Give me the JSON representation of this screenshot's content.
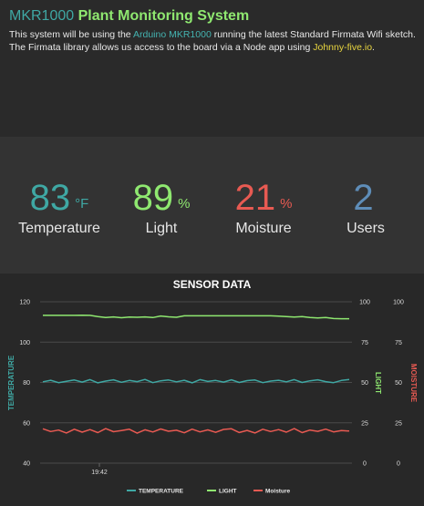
{
  "header": {
    "brand": "MKR1000",
    "title": "Plant Monitoring System",
    "intro_1": "This system will be using the ",
    "intro_link_1": "Arduino MKR1000",
    "intro_2": " running the latest Standard Firmata Wifi sketch. The Firmata library allows us access to the board via a Node app using ",
    "intro_link_2": "Johnny-five.io",
    "intro_3": "."
  },
  "stats": [
    {
      "value": "83",
      "unit": "°F",
      "label": "Temperature",
      "color": "#3fa8a4"
    },
    {
      "value": "89",
      "unit": "%",
      "label": "Light",
      "color": "#8fe870"
    },
    {
      "value": "21",
      "unit": "%",
      "label": "Moisture",
      "color": "#e85a52"
    },
    {
      "value": "2",
      "unit": "",
      "label": "Users",
      "color": "#5e8db8"
    }
  ],
  "chart_data": {
    "type": "line",
    "title": "SENSOR DATA",
    "x_tick_labels": [
      "19:42"
    ],
    "left_axis": {
      "label": "TEMPERATURE",
      "ylim": [
        40,
        120
      ],
      "ticks": [
        "40",
        "60",
        "80",
        "100",
        "120"
      ]
    },
    "right_axes": [
      {
        "label": "LIGHT",
        "ylim": [
          0,
          100
        ],
        "ticks": [
          "0",
          "25",
          "50",
          "75",
          "100"
        ]
      },
      {
        "label": "MOISTURE",
        "ylim": [
          0,
          100
        ],
        "ticks": [
          "0",
          "25",
          "50",
          "75",
          "100"
        ]
      }
    ],
    "legend": [
      "TEMPERATURE",
      "LIGHT",
      "Moisture"
    ],
    "legend_position": "bottom",
    "series": [
      {
        "name": "TEMPERATURE",
        "color": "#3fa8a4",
        "axis": "left",
        "values": [
          80.3,
          81.1,
          79.9,
          80.6,
          81.2,
          80.2,
          81.4,
          79.8,
          80.7,
          81.3,
          80.1,
          81.0,
          80.4,
          81.5,
          79.9,
          80.8,
          81.2,
          80.3,
          81.1,
          79.8,
          81.4,
          80.5,
          81.0,
          80.2,
          81.3,
          80.0,
          80.9,
          81.2,
          79.9,
          80.7,
          81.1,
          80.3,
          81.4,
          80.0,
          80.8,
          81.3,
          80.4,
          79.9,
          81.0,
          81.5
        ]
      },
      {
        "name": "LIGHT",
        "color": "#8fe870",
        "axis": "right",
        "values": [
          91.6,
          91.6,
          91.6,
          91.6,
          91.6,
          91.7,
          91.6,
          90.8,
          90.2,
          90.6,
          90.1,
          90.5,
          90.4,
          90.6,
          90.2,
          91.2,
          90.7,
          90.4,
          91.3,
          91.3,
          91.3,
          91.3,
          91.3,
          91.3,
          91.3,
          91.3,
          91.3,
          91.3,
          91.3,
          91.3,
          91.1,
          90.8,
          90.5,
          90.8,
          90.3,
          90.0,
          90.2,
          89.6,
          89.5,
          89.5
        ]
      },
      {
        "name": "Moisture",
        "color": "#e85a52",
        "axis": "right",
        "values": [
          21.3,
          19.6,
          20.5,
          18.7,
          21.0,
          19.2,
          20.8,
          18.9,
          21.4,
          19.5,
          20.2,
          21.0,
          18.6,
          20.7,
          19.3,
          21.2,
          19.8,
          20.4,
          18.8,
          21.1,
          19.4,
          20.6,
          19.1,
          20.9,
          21.3,
          19.0,
          20.3,
          18.7,
          21.0,
          19.6,
          20.8,
          19.2,
          21.4,
          18.9,
          20.5,
          19.7,
          21.1,
          19.4,
          20.2,
          19.9
        ]
      }
    ]
  }
}
